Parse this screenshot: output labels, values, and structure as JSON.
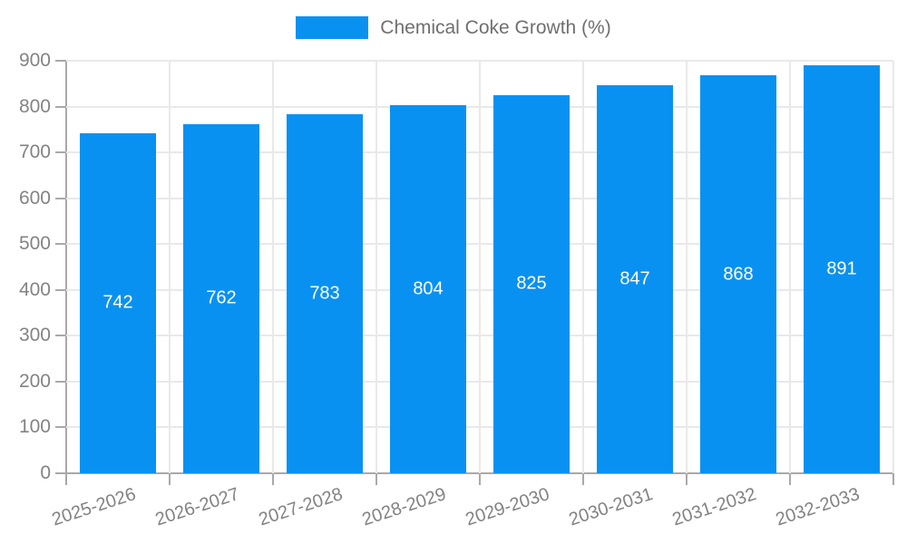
{
  "chart_data": {
    "type": "bar",
    "title": "Chemical Coke Growth (%)",
    "categories": [
      "2025-2026",
      "2026-2027",
      "2027-2028",
      "2028-2029",
      "2029-2030",
      "2030-2031",
      "2031-2032",
      "2032-2033"
    ],
    "values": [
      742,
      762,
      783,
      804,
      825,
      847,
      868,
      891
    ],
    "xlabel": "",
    "ylabel": "",
    "ylim": [
      0,
      900
    ],
    "yticks": [
      0,
      100,
      200,
      300,
      400,
      500,
      600,
      700,
      800,
      900
    ],
    "grid": true,
    "legend_position": "top-center",
    "bar_color": "#0991f1",
    "value_label_color": "#ffffff",
    "axis_text_color": "#838383"
  }
}
